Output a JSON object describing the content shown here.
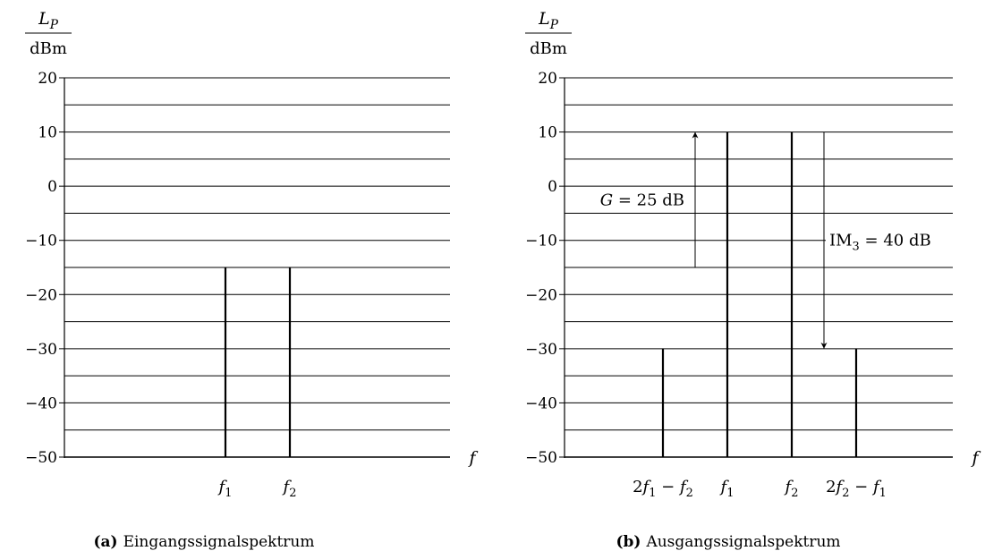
{
  "chart_data": [
    {
      "type": "bar",
      "caption_tag": "(a)",
      "caption_text": "Eingangssignalspektrum",
      "ylabel_symbol": "L",
      "ylabel_sub": "P",
      "ylabel_unit": "dBm",
      "xlabel": "f",
      "ylim": [
        -50,
        20
      ],
      "y_ticks": [
        -50,
        -40,
        -30,
        -20,
        -10,
        0,
        10,
        20
      ],
      "y_tick_labels": [
        "−50",
        "−40",
        "−30",
        "−20",
        "−10",
        "0",
        "10",
        "20"
      ],
      "grid_step": 5,
      "lines": [
        {
          "x": "f1",
          "value": -15,
          "label_parts": [
            {
              "t": "f",
              "i": true
            },
            {
              "t": "1",
              "sub": true
            }
          ]
        },
        {
          "x": "f2",
          "value": -15,
          "label_parts": [
            {
              "t": "f",
              "i": true
            },
            {
              "t": "2",
              "sub": true
            }
          ]
        }
      ],
      "annotations": []
    },
    {
      "type": "bar",
      "caption_tag": "(b)",
      "caption_text": "Ausgangssignalspektrum",
      "ylabel_symbol": "L",
      "ylabel_sub": "P",
      "ylabel_unit": "dBm",
      "xlabel": "f",
      "ylim": [
        -50,
        20
      ],
      "y_ticks": [
        -50,
        -40,
        -30,
        -20,
        -10,
        0,
        10,
        20
      ],
      "y_tick_labels": [
        "−50",
        "−40",
        "−30",
        "−20",
        "−10",
        "0",
        "10",
        "20"
      ],
      "grid_step": 5,
      "lines": [
        {
          "x": "2f1-f2",
          "value": -30,
          "label_parts": [
            {
              "t": "2"
            },
            {
              "t": "f",
              "i": true
            },
            {
              "t": "1",
              "sub": true
            },
            {
              "t": " − "
            },
            {
              "t": "f",
              "i": true
            },
            {
              "t": "2",
              "sub": true
            }
          ]
        },
        {
          "x": "f1",
          "value": 10,
          "label_parts": [
            {
              "t": "f",
              "i": true
            },
            {
              "t": "1",
              "sub": true
            }
          ]
        },
        {
          "x": "f2",
          "value": 10,
          "label_parts": [
            {
              "t": "f",
              "i": true
            },
            {
              "t": "2",
              "sub": true
            }
          ]
        },
        {
          "x": "2f2-f1",
          "value": -30,
          "label_parts": [
            {
              "t": "2"
            },
            {
              "t": "f",
              "i": true
            },
            {
              "t": "2",
              "sub": true
            },
            {
              "t": " − "
            },
            {
              "t": "f",
              "i": true
            },
            {
              "t": "1",
              "sub": true
            }
          ]
        }
      ],
      "annotations": [
        {
          "name": "gain-annotation",
          "from": -15,
          "to": 10,
          "label_parts": [
            {
              "t": "G",
              "i": true
            },
            {
              "t": " = 25 dB"
            }
          ]
        },
        {
          "name": "im3-annotation",
          "from": 10,
          "to": -30,
          "label_parts": [
            {
              "t": "IM"
            },
            {
              "t": "3",
              "sub": true
            },
            {
              "t": " = 40 dB"
            }
          ]
        }
      ]
    }
  ]
}
